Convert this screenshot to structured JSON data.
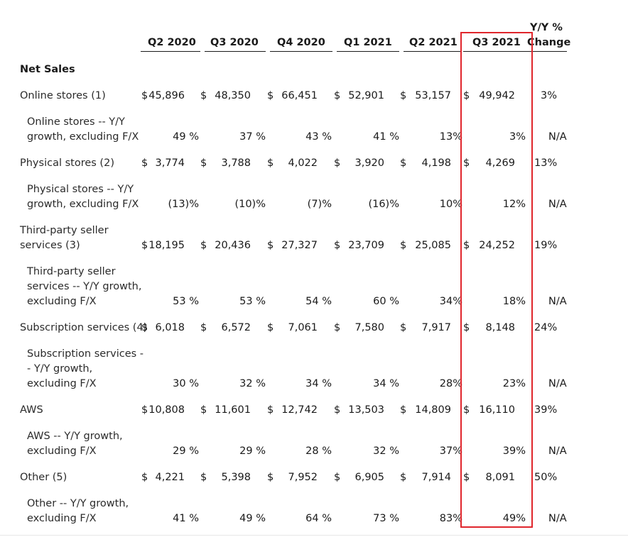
{
  "header": {
    "columns": [
      "Q2 2020",
      "Q3 2020",
      "Q4 2020",
      "Q1 2021",
      "Q2 2021",
      "Q3 2021"
    ],
    "yoy_line1": "Y/Y %",
    "yoy_line2": "Change"
  },
  "section_title": "Net Sales",
  "rows": [
    {
      "label": [
        "Online stores (1)"
      ],
      "cells": [
        "$",
        "45,896",
        "$",
        "48,350",
        "$",
        "66,451",
        "$",
        "52,901",
        "$",
        "53,157",
        "$",
        "49,942"
      ],
      "yoy": "3%"
    },
    {
      "label": [
        "Online stores -- Y/Y",
        "growth, excluding F/X"
      ],
      "cells": [
        "49 %",
        "37 %",
        "43 %",
        "41 %",
        "13%",
        "3%"
      ],
      "yoy": "N/A"
    },
    {
      "label": [
        "Physical stores (2)"
      ],
      "cells": [
        "$",
        "3,774",
        "$",
        "3,788",
        "$",
        "4,022",
        "$",
        "3,920",
        "$",
        "4,198",
        "$",
        "4,269"
      ],
      "yoy": "13%"
    },
    {
      "label": [
        "Physical stores -- Y/Y",
        "growth, excluding F/X"
      ],
      "cells": [
        "(13)%",
        "(10)%",
        "(7)%",
        "(16)%",
        "10%",
        "12%"
      ],
      "yoy": "N/A"
    },
    {
      "label": [
        "Third-party seller",
        "services (3)"
      ],
      "cells": [
        "$",
        "18,195",
        "$",
        "20,436",
        "$",
        "27,327",
        "$",
        "23,709",
        "$",
        "25,085",
        "$",
        "24,252"
      ],
      "yoy": "19%"
    },
    {
      "label": [
        "Third-party seller",
        "services -- Y/Y growth,",
        "excluding F/X"
      ],
      "cells": [
        "53 %",
        "53 %",
        "54 %",
        "60 %",
        "34%",
        "18%"
      ],
      "yoy": "N/A"
    },
    {
      "label": [
        "Subscription services (4)"
      ],
      "cells": [
        "$",
        "6,018",
        "$",
        "6,572",
        "$",
        "7,061",
        "$",
        "7,580",
        "$",
        "7,917",
        "$",
        "8,148"
      ],
      "yoy": "24%"
    },
    {
      "label": [
        "Subscription services -",
        "- Y/Y growth,",
        "excluding F/X"
      ],
      "cells": [
        "30 %",
        "32 %",
        "34 %",
        "34 %",
        "28%",
        "23%"
      ],
      "yoy": "N/A"
    },
    {
      "label": [
        "AWS"
      ],
      "cells": [
        "$",
        "10,808",
        "$",
        "11,601",
        "$",
        "12,742",
        "$",
        "13,503",
        "$",
        "14,809",
        "$",
        "16,110"
      ],
      "yoy": "39%"
    },
    {
      "label": [
        "AWS -- Y/Y growth,",
        "excluding F/X"
      ],
      "cells": [
        "29 %",
        "29 %",
        "28 %",
        "32 %",
        "37%",
        "39%"
      ],
      "yoy": "N/A"
    },
    {
      "label": [
        "Other (5)"
      ],
      "cells": [
        "$",
        "4,221",
        "$",
        "5,398",
        "$",
        "7,952",
        "$",
        "6,905",
        "$",
        "7,914",
        "$",
        "8,091"
      ],
      "yoy": "50%"
    },
    {
      "label": [
        "Other -- Y/Y growth,",
        "excluding F/X"
      ],
      "cells": [
        "41 %",
        "49 %",
        "64 %",
        "73 %",
        "83%",
        "49%"
      ],
      "yoy": "N/A"
    }
  ],
  "highlight_color": "#e0262c"
}
